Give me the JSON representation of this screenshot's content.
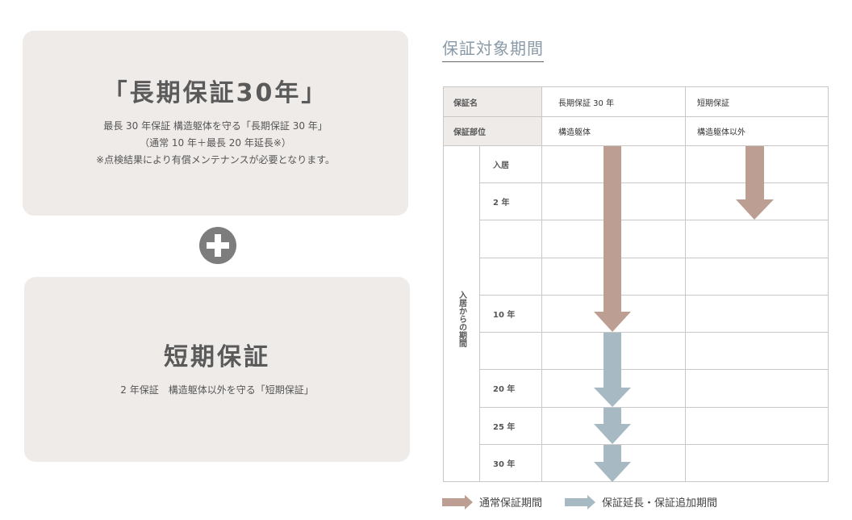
{
  "long_term": {
    "title": "「長期保証30年」",
    "lines": [
      "最長 30 年保証 構造躯体を守る「長期保証 30 年」",
      "（通常 10 年＋最長 20 年延長※）",
      "※点検結果により有償メンテナンスが必要となります。"
    ]
  },
  "short_term": {
    "title": "短期保証",
    "lines": [
      "2 年保証　構造躯体以外を守る「短期保証」"
    ]
  },
  "section_title": "保証対象期間",
  "table": {
    "header_rows": [
      {
        "label": "保証名",
        "long": "長期保証 30 年",
        "short": "短期保証"
      },
      {
        "label": "保証部位",
        "long": "構造躯体",
        "short": "構造躯体以外"
      }
    ],
    "period_axis_label": "入居からの期間",
    "period_rows": [
      "入居",
      "2 年",
      "",
      "",
      "10 年",
      "",
      "20 年",
      "25 年",
      "30 年"
    ]
  },
  "legend": {
    "normal": "通常保証期間",
    "extension": "保証延長・保証追加期間"
  },
  "colors": {
    "normal": "#bc9e93",
    "extension": "#a7bac3",
    "card_bg": "#efebe9"
  }
}
